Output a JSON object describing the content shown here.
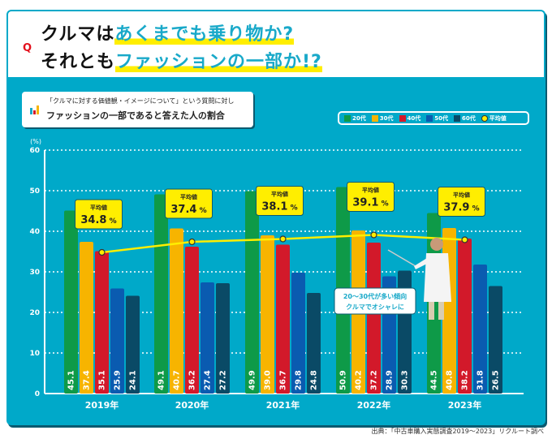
{
  "title": {
    "line1_plain": "クルマは",
    "line1_highlight": "あくまでも乗り物か?",
    "line2_plain": "それとも",
    "line2_highlight": "ファッションの一部か!?",
    "q_mark": "Q"
  },
  "subtitle": {
    "line1": "「クルマに対する価値観・イメージについて」という質問に対し",
    "line2": "ファッションの一部であると答えた人の割合"
  },
  "callout": {
    "line1": "20～30代が多い傾向",
    "line2": "クルマでオシャレに"
  },
  "source": "出典：「中古車購入実態調査2019～2023」リクルート調べ",
  "avg_label": "平均値",
  "chart_data": {
    "type": "bar",
    "categories": [
      "2019年",
      "2020年",
      "2021年",
      "2022年",
      "2023年"
    ],
    "ylabel": "(%)",
    "ylim": [
      0,
      60
    ],
    "yticks": [
      0,
      10,
      20,
      30,
      40,
      50,
      60
    ],
    "grid": true,
    "legend_position": "top-right",
    "series": [
      {
        "name": "20代",
        "color": "#0e9a48",
        "values": [
          45.1,
          49.1,
          49.9,
          50.9,
          44.5
        ]
      },
      {
        "name": "30代",
        "color": "#f7b400",
        "values": [
          37.4,
          40.7,
          39.0,
          40.2,
          40.8
        ]
      },
      {
        "name": "40代",
        "color": "#d2192a",
        "values": [
          35.1,
          36.2,
          36.7,
          37.2,
          38.2
        ]
      },
      {
        "name": "50代",
        "color": "#0a5bb0",
        "values": [
          25.9,
          27.4,
          29.8,
          28.9,
          31.8
        ]
      },
      {
        "name": "60代",
        "color": "#0a4a66",
        "values": [
          24.1,
          27.2,
          24.8,
          30.3,
          26.5
        ]
      }
    ],
    "average": {
      "name": "平均値",
      "color": "#ffee00",
      "values": [
        34.8,
        37.4,
        38.1,
        39.1,
        37.9
      ],
      "labels": [
        "34.8",
        "37.4",
        "38.1",
        "39.1",
        "37.9"
      ],
      "unit": "%"
    }
  }
}
